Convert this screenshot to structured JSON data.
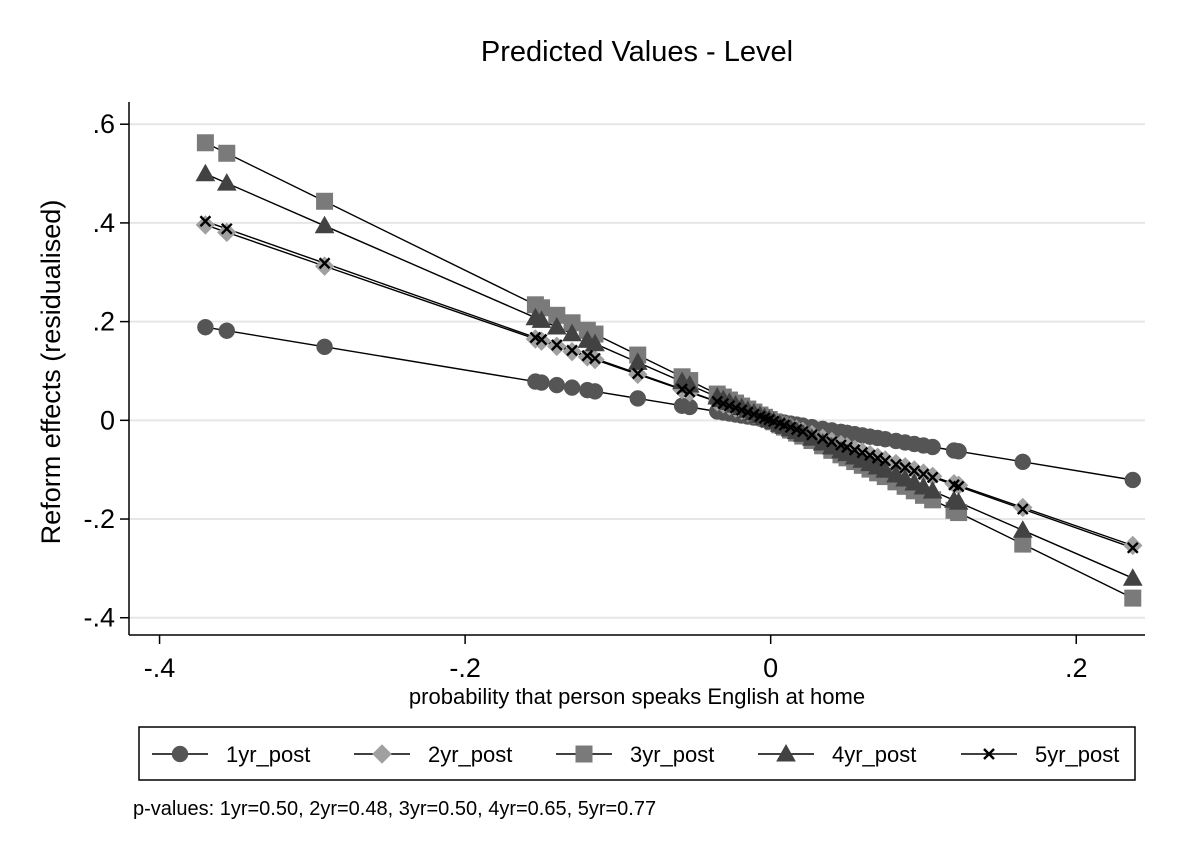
{
  "chart_data": {
    "type": "line",
    "title": "Predicted Values - Level",
    "xlabel": "probability that person speaks English at home",
    "ylabel": "Reform effects (residualised)",
    "xlim": [
      -0.42,
      0.245
    ],
    "ylim": [
      -0.435,
      0.645
    ],
    "xticks": [
      {
        "value": -0.4,
        "label": "-.4"
      },
      {
        "value": -0.2,
        "label": "-.2"
      },
      {
        "value": 0,
        "label": "0"
      },
      {
        "value": 0.2,
        "label": ".2"
      }
    ],
    "yticks": [
      {
        "value": -0.4,
        "label": "-.4"
      },
      {
        "value": -0.2,
        "label": "-.2"
      },
      {
        "value": 0,
        "label": "0"
      },
      {
        "value": 0.2,
        "label": ".2"
      },
      {
        "value": 0.4,
        "label": ".4"
      },
      {
        "value": 0.6,
        "label": ".6"
      }
    ],
    "grid": true,
    "legend_position": "bottom",
    "x": [
      -0.37,
      -0.356,
      -0.292,
      -0.154,
      -0.15,
      -0.14,
      -0.13,
      -0.12,
      -0.115,
      -0.087,
      -0.058,
      -0.053,
      -0.035,
      -0.031,
      -0.027,
      -0.023,
      -0.019,
      -0.015,
      -0.011,
      -0.007,
      -0.004,
      -0.001,
      0.002,
      0.006,
      0.009,
      0.013,
      0.017,
      0.021,
      0.027,
      0.034,
      0.04,
      0.046,
      0.05,
      0.055,
      0.06,
      0.065,
      0.07,
      0.075,
      0.082,
      0.088,
      0.094,
      0.1,
      0.106,
      0.12,
      0.123,
      0.165,
      0.237
    ],
    "series": [
      {
        "name": "1yr_post",
        "marker": "circle",
        "color": "#555555",
        "slope": -0.51,
        "intercept": 0.0
      },
      {
        "name": "2yr_post",
        "marker": "diamond",
        "color": "#a0a0a0",
        "slope": -1.07,
        "intercept": 0.0
      },
      {
        "name": "3yr_post",
        "marker": "square",
        "color": "#7a7a7a",
        "slope": -1.52,
        "intercept": 0.0
      },
      {
        "name": "4yr_post",
        "marker": "triangle",
        "color": "#424242",
        "slope": -1.35,
        "intercept": 0.0
      },
      {
        "name": "5yr_post",
        "marker": "x",
        "color": "#000000",
        "slope": -1.09,
        "intercept": 0.0
      }
    ],
    "note": "p-values: 1yr=0.50,  2yr=0.48,  3yr=0.50,  4yr=0.65,  5yr=0.77"
  },
  "colors": {
    "background": "#ffffff",
    "grid": "#e6e6e6",
    "axis": "#000000",
    "line": "#000000"
  }
}
